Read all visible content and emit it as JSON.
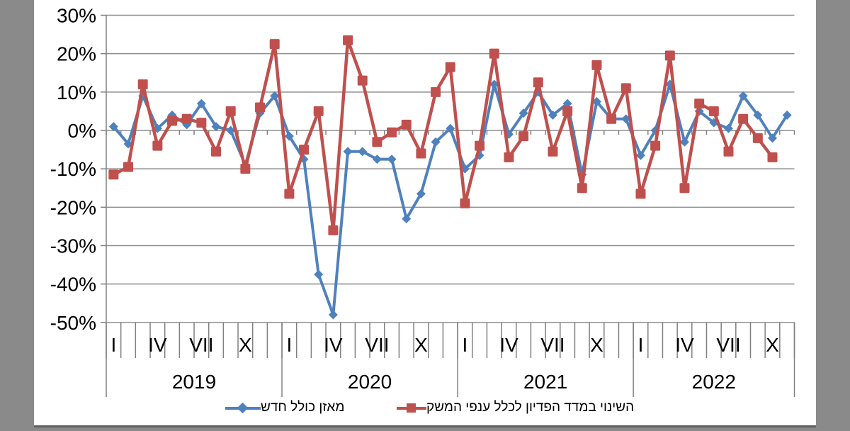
{
  "page": {
    "background_color": "#8A8A8A",
    "chart_background_color": "#FFFFFF"
  },
  "chart_data": {
    "type": "line",
    "title": "",
    "grid": true,
    "legend_position": "bottom",
    "y_axis": {
      "unit": "%",
      "min": -50,
      "max": 30,
      "step": 10,
      "tick_labels": [
        "30%",
        "20%",
        "10%",
        "0%",
        "-10%",
        "-20%",
        "-30%",
        "-40%",
        "-50%"
      ],
      "tick_values": [
        30,
        20,
        10,
        0,
        -10,
        -20,
        -30,
        -40,
        -50
      ]
    },
    "x_axis": {
      "years": [
        "2019",
        "2020",
        "2021",
        "2022"
      ],
      "months_per_year": [
        12,
        12,
        12,
        11
      ],
      "month_tick_label_positions": [
        0,
        3,
        6,
        9
      ],
      "month_tick_labels": [
        "I",
        "IV",
        "VII",
        "X"
      ]
    },
    "series": [
      {
        "name": "מאזן כולל חדש",
        "color": "#4F81BD",
        "marker": "diamond",
        "values": [
          1,
          -3.5,
          9,
          0.5,
          4,
          1.5,
          7,
          1,
          0,
          -9,
          4.5,
          9,
          -1.5,
          -7.5,
          -37.5,
          -48,
          -5.5,
          -5.5,
          -7.5,
          -7.5,
          -23,
          -16.5,
          -3,
          0.5,
          -10,
          -6.5,
          12,
          -1,
          4.5,
          10,
          4,
          7,
          -11.5,
          7.5,
          3,
          3,
          -6.5,
          0,
          12,
          -3,
          5,
          2,
          0.5,
          9,
          4,
          -2,
          4
        ]
      },
      {
        "name": "השינוי במדד הפדיון לכלל ענפי המשק",
        "color": "#C0504D",
        "marker": "square",
        "values": [
          -11.5,
          -9.5,
          12,
          -4,
          2.5,
          3,
          2,
          -5.5,
          5,
          -10,
          6,
          22.5,
          -16.5,
          -5,
          5,
          -26,
          23.5,
          13,
          -3,
          -0.5,
          1.5,
          -6,
          10,
          16.5,
          -19,
          -4,
          20,
          -7,
          -1.5,
          12.5,
          -5.5,
          5,
          -15,
          17,
          3,
          11,
          -16.5,
          -4,
          19.5,
          -15,
          7,
          5,
          -5.5,
          3,
          -2,
          -7,
          null
        ]
      }
    ],
    "axis_color": "#808080",
    "gridline_color": "#8E8E8E",
    "label_color": "#000000"
  }
}
